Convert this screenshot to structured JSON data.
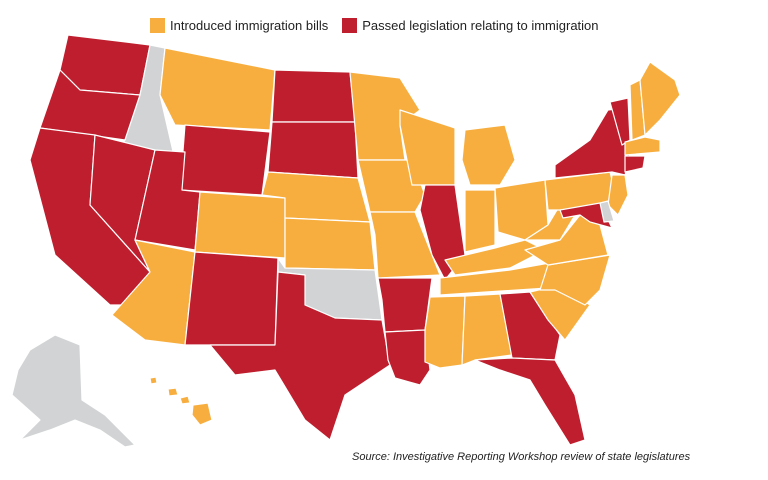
{
  "legend": {
    "introduced_label": "Introduced immigration bills",
    "passed_label": "Passed legislation relating to immigration"
  },
  "colors": {
    "introduced": "#F7AE3E",
    "passed": "#BE1E2D",
    "none": "#D1D3D4"
  },
  "status": {
    "passed": [
      "WA",
      "OR",
      "CA",
      "NV",
      "UT",
      "WY",
      "ND",
      "SD",
      "NM",
      "TX",
      "AR",
      "LA",
      "IL",
      "GA",
      "FL",
      "NY",
      "VT",
      "CT",
      "MD"
    ],
    "introduced": [
      "MT",
      "CO",
      "AZ",
      "NE",
      "KS",
      "MN",
      "IA",
      "MO",
      "WI",
      "MI",
      "IN",
      "OH",
      "KY",
      "TN",
      "MS",
      "AL",
      "SC",
      "NC",
      "VA",
      "WV",
      "PA",
      "NJ",
      "ME",
      "NH",
      "MA",
      "HI"
    ],
    "none": [
      "ID",
      "OK",
      "AK",
      "DE"
    ]
  },
  "source": "Source: Investigative Reporting Workshop review of state legislatures"
}
